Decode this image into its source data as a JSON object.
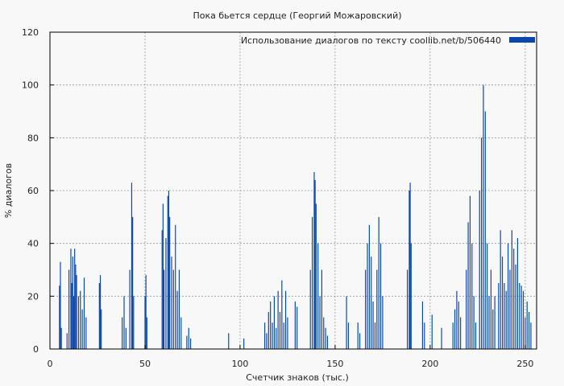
{
  "chart_data": {
    "type": "bar",
    "title": "Пока бьется сердце (Георгий Можаровский)",
    "xlabel": "Счетчик знаков (тыс.)",
    "ylabel": "% диалогов",
    "xlim": [
      0,
      256
    ],
    "ylim": [
      0,
      120
    ],
    "xticks": [
      0,
      50,
      100,
      150,
      200,
      250
    ],
    "yticks": [
      0,
      20,
      40,
      60,
      80,
      100,
      120
    ],
    "grid": true,
    "legend_position": "top-right",
    "series": [
      {
        "name": "Использование диалогов по тексту  coollib.net/b/506440",
        "color": "#0a47a8"
      }
    ],
    "bars": [
      [
        5,
        24
      ],
      [
        5.5,
        33
      ],
      [
        6,
        8
      ],
      [
        9,
        6
      ],
      [
        10,
        30
      ],
      [
        11,
        38
      ],
      [
        11.5,
        25
      ],
      [
        12,
        35
      ],
      [
        12.5,
        20
      ],
      [
        13,
        38
      ],
      [
        13.5,
        32
      ],
      [
        14,
        28
      ],
      [
        15,
        20
      ],
      [
        16,
        22
      ],
      [
        17,
        15
      ],
      [
        18,
        27
      ],
      [
        19,
        12
      ],
      [
        26,
        25
      ],
      [
        26.5,
        28
      ],
      [
        27,
        15
      ],
      [
        38,
        12
      ],
      [
        39,
        20
      ],
      [
        40,
        8
      ],
      [
        42,
        30
      ],
      [
        43,
        63
      ],
      [
        43.5,
        50
      ],
      [
        44,
        20
      ],
      [
        50,
        20
      ],
      [
        50.5,
        28
      ],
      [
        51,
        12
      ],
      [
        59,
        45
      ],
      [
        59.5,
        55
      ],
      [
        60,
        30
      ],
      [
        61,
        42
      ],
      [
        62,
        58
      ],
      [
        62.5,
        60
      ],
      [
        63,
        50
      ],
      [
        64,
        35
      ],
      [
        65,
        30
      ],
      [
        66,
        47
      ],
      [
        67,
        22
      ],
      [
        68,
        30
      ],
      [
        69,
        12
      ],
      [
        72,
        5
      ],
      [
        73,
        8
      ],
      [
        74,
        4
      ],
      [
        94,
        6
      ],
      [
        102,
        4
      ],
      [
        113,
        10
      ],
      [
        114,
        6
      ],
      [
        115,
        14
      ],
      [
        116,
        18
      ],
      [
        117,
        10
      ],
      [
        118,
        20
      ],
      [
        119,
        8
      ],
      [
        120,
        22
      ],
      [
        121,
        14
      ],
      [
        122,
        26
      ],
      [
        123,
        10
      ],
      [
        124,
        22
      ],
      [
        125,
        12
      ],
      [
        129,
        18
      ],
      [
        130,
        16
      ],
      [
        137,
        30
      ],
      [
        138,
        50
      ],
      [
        139,
        67
      ],
      [
        139.5,
        64
      ],
      [
        140,
        55
      ],
      [
        141,
        40
      ],
      [
        142,
        20
      ],
      [
        143,
        30
      ],
      [
        144,
        12
      ],
      [
        145,
        8
      ],
      [
        146,
        5
      ],
      [
        156,
        20
      ],
      [
        157,
        10
      ],
      [
        162,
        10
      ],
      [
        163,
        6
      ],
      [
        166,
        30
      ],
      [
        167,
        40
      ],
      [
        168,
        47
      ],
      [
        169,
        35
      ],
      [
        170,
        18
      ],
      [
        171,
        10
      ],
      [
        172,
        30
      ],
      [
        173,
        50
      ],
      [
        174,
        40
      ],
      [
        175,
        20
      ],
      [
        188,
        30
      ],
      [
        189,
        60
      ],
      [
        189.5,
        63
      ],
      [
        190,
        40
      ],
      [
        196,
        18
      ],
      [
        197,
        10
      ],
      [
        201,
        13
      ],
      [
        206,
        8
      ],
      [
        212,
        10
      ],
      [
        213,
        15
      ],
      [
        214,
        22
      ],
      [
        215,
        18
      ],
      [
        216,
        12
      ],
      [
        219,
        30
      ],
      [
        220,
        48
      ],
      [
        221,
        58
      ],
      [
        222,
        40
      ],
      [
        223,
        20
      ],
      [
        224,
        10
      ],
      [
        226,
        60
      ],
      [
        227,
        80
      ],
      [
        228,
        100
      ],
      [
        229,
        90
      ],
      [
        230,
        40
      ],
      [
        231,
        20
      ],
      [
        232,
        30
      ],
      [
        233,
        15
      ],
      [
        234,
        20
      ],
      [
        236,
        25
      ],
      [
        237,
        45
      ],
      [
        238,
        35
      ],
      [
        239,
        25
      ],
      [
        240,
        22
      ],
      [
        241,
        40
      ],
      [
        242,
        30
      ],
      [
        243,
        45
      ],
      [
        244,
        38
      ],
      [
        245,
        32
      ],
      [
        246,
        42
      ],
      [
        247,
        25
      ],
      [
        248,
        24
      ],
      [
        249,
        22
      ],
      [
        250,
        12
      ],
      [
        251,
        18
      ],
      [
        252,
        14
      ],
      [
        253,
        10
      ]
    ]
  }
}
